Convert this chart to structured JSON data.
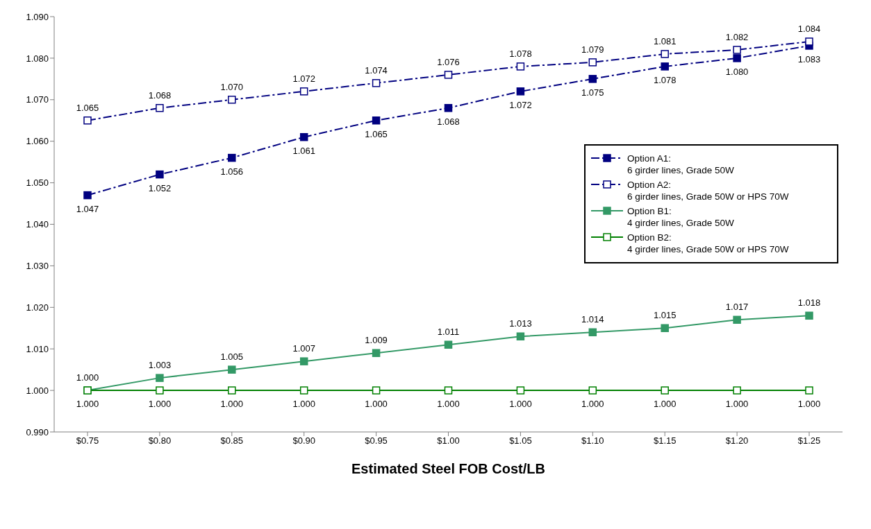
{
  "chart_data": {
    "type": "line",
    "xlabel": "Estimated Steel FOB Cost/LB",
    "categories": [
      "$0.75",
      "$0.80",
      "$0.85",
      "$0.90",
      "$0.95",
      "$1.00",
      "$1.05",
      "$1.10",
      "$1.15",
      "$1.20",
      "$1.25"
    ],
    "series": [
      {
        "name": "Option A1:\n6 girder lines, Grade 50W",
        "color": "#000080",
        "line_style": "dashed",
        "marker": "square",
        "values": [
          1.047,
          1.052,
          1.056,
          1.061,
          1.065,
          1.068,
          1.072,
          1.075,
          1.078,
          1.08,
          1.083
        ],
        "value_labels": [
          "1.047",
          "1.052",
          "1.056",
          "1.061",
          "1.065",
          "1.068",
          "1.072",
          "1.075",
          "1.078",
          "1.080",
          "1.083"
        ]
      },
      {
        "name": "Option A2:\n6 girder lines, Grade 50W or HPS 70W",
        "color": "#000080",
        "line_style": "dashed",
        "marker": "square_open",
        "values": [
          1.065,
          1.068,
          1.07,
          1.072,
          1.074,
          1.076,
          1.078,
          1.079,
          1.081,
          1.082,
          1.084
        ],
        "value_labels": [
          "1.065",
          "1.068",
          "1.070",
          "1.072",
          "1.074",
          "1.076",
          "1.078",
          "1.079",
          "1.081",
          "1.082",
          "1.084"
        ]
      },
      {
        "name": "Option B1:\n4 girder lines, Grade 50W",
        "color": "#339966",
        "line_style": "solid",
        "marker": "square",
        "values": [
          1.0,
          1.003,
          1.005,
          1.007,
          1.009,
          1.011,
          1.013,
          1.014,
          1.015,
          1.017,
          1.018
        ],
        "value_labels": [
          "1.000",
          "1.003",
          "1.005",
          "1.007",
          "1.009",
          "1.011",
          "1.013",
          "1.014",
          "1.015",
          "1.017",
          "1.018"
        ]
      },
      {
        "name": "Option B2:\n4 girder lines, Grade 50W or HPS 70W",
        "color": "#008000",
        "line_style": "solid",
        "marker": "square_open",
        "values": [
          1.0,
          1.0,
          1.0,
          1.0,
          1.0,
          1.0,
          1.0,
          1.0,
          1.0,
          1.0,
          1.0
        ],
        "value_labels": [
          "1.000",
          "1.000",
          "1.000",
          "1.000",
          "1.000",
          "1.000",
          "1.000",
          "1.000",
          "1.000",
          "1.000",
          "1.000"
        ]
      }
    ],
    "ylim": [
      0.99,
      1.09
    ],
    "yticks": [
      {
        "value": 0.99,
        "label": "0.990"
      },
      {
        "value": 1.0,
        "label": "1.000"
      },
      {
        "value": 1.01,
        "label": "1.010"
      },
      {
        "value": 1.02,
        "label": "1.020"
      },
      {
        "value": 1.03,
        "label": "1.030"
      },
      {
        "value": 1.04,
        "label": "1.040"
      },
      {
        "value": 1.05,
        "label": "1.050"
      },
      {
        "value": 1.06,
        "label": "1.060"
      },
      {
        "value": 1.07,
        "label": "1.070"
      },
      {
        "value": 1.08,
        "label": "1.080"
      },
      {
        "value": 1.09,
        "label": "1.090"
      }
    ],
    "legend": "right"
  }
}
